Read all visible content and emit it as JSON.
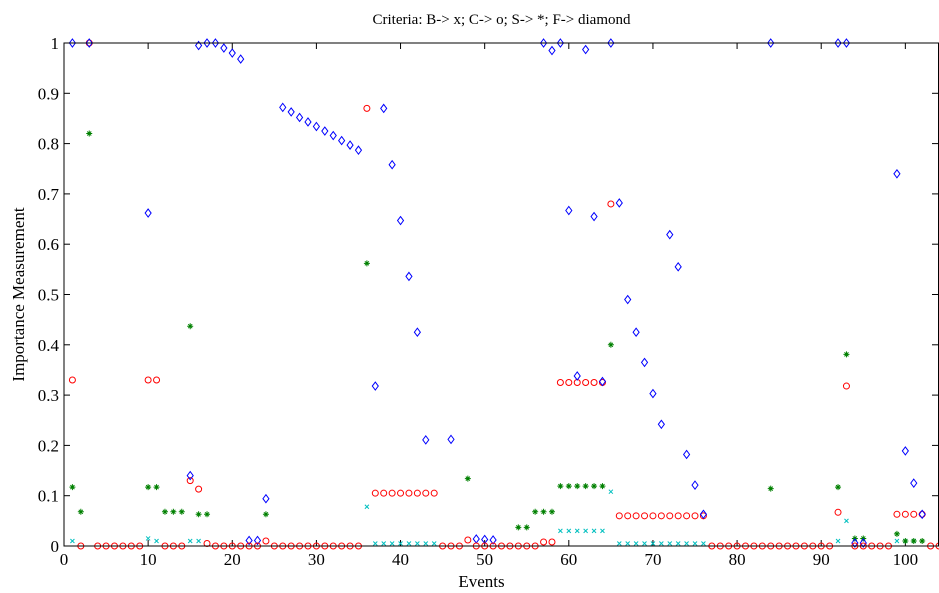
{
  "chart_data": {
    "type": "scatter",
    "title": "Criteria: B-> x; C-> o; S-> *; F-> diamond",
    "xlabel": "Events",
    "ylabel": "Importance Measurement",
    "xlim": [
      0,
      104
    ],
    "ylim": [
      0,
      1
    ],
    "grid": false,
    "legend": "none",
    "xticks": [
      0,
      10,
      20,
      30,
      40,
      50,
      60,
      70,
      80,
      90,
      100
    ],
    "xtick_labels": [
      "0",
      "10",
      "20",
      "30",
      "40",
      "50",
      "60",
      "70",
      "80",
      "90",
      "100"
    ],
    "yticks": [
      0,
      0.1,
      0.2,
      0.3,
      0.4,
      0.5,
      0.6,
      0.7,
      0.8,
      0.9,
      1
    ],
    "ytick_labels": [
      "0",
      "0.1",
      "0.2",
      "0.3",
      "0.4",
      "0.5",
      "0.6",
      "0.7",
      "0.8",
      "0.9",
      "1"
    ],
    "series": [
      {
        "marker": "x",
        "color": "#00bfbf",
        "x": [
          1,
          10,
          11,
          15,
          16,
          36,
          37,
          38,
          39,
          40,
          41,
          42,
          43,
          44,
          59,
          60,
          61,
          62,
          63,
          64,
          65,
          66,
          67,
          68,
          69,
          70,
          71,
          72,
          73,
          74,
          75,
          76,
          92,
          93,
          99,
          100,
          101
        ],
        "y": [
          0.01,
          0.015,
          0.01,
          0.01,
          0.01,
          0.078,
          0.005,
          0.005,
          0.005,
          0.005,
          0.005,
          0.005,
          0.005,
          0.005,
          0.03,
          0.03,
          0.03,
          0.03,
          0.03,
          0.03,
          0.108,
          0.005,
          0.005,
          0.005,
          0.005,
          0.005,
          0.005,
          0.005,
          0.005,
          0.005,
          0.005,
          0.005,
          0.01,
          0.05,
          0.01,
          0.01,
          0.01
        ]
      },
      {
        "marker": "o",
        "color": "#ff0000",
        "x": [
          1,
          3,
          10,
          11,
          15,
          16,
          17,
          24,
          36,
          37,
          38,
          39,
          40,
          41,
          42,
          43,
          44,
          48,
          57,
          58,
          59,
          60,
          61,
          62,
          63,
          64,
          65,
          66,
          67,
          68,
          69,
          70,
          71,
          72,
          73,
          74,
          75,
          76,
          92,
          93,
          99,
          100,
          101,
          102
        ],
        "y": [
          0.33,
          1,
          0.33,
          0.33,
          0.13,
          0.113,
          0.005,
          0.01,
          0.87,
          0.105,
          0.105,
          0.105,
          0.105,
          0.105,
          0.105,
          0.105,
          0.105,
          0.012,
          0.008,
          0.008,
          0.325,
          0.325,
          0.325,
          0.325,
          0.325,
          0.325,
          0.68,
          0.06,
          0.06,
          0.06,
          0.06,
          0.06,
          0.06,
          0.06,
          0.06,
          0.06,
          0.06,
          0.06,
          0.067,
          0.318,
          0.063,
          0.063,
          0.063,
          0.063
        ]
      },
      {
        "marker": "*",
        "color": "#008000",
        "x": [
          1,
          2,
          3,
          10,
          11,
          12,
          13,
          14,
          15,
          16,
          17,
          24,
          36,
          48,
          54,
          55,
          56,
          57,
          58,
          59,
          60,
          61,
          62,
          63,
          64,
          65,
          84,
          92,
          93,
          94,
          95,
          99,
          100,
          101,
          102
        ],
        "y": [
          0.117,
          0.068,
          0.82,
          0.117,
          0.117,
          0.068,
          0.068,
          0.068,
          0.437,
          0.063,
          0.063,
          0.063,
          0.562,
          0.134,
          0.037,
          0.037,
          0.068,
          0.068,
          0.068,
          0.119,
          0.119,
          0.119,
          0.119,
          0.119,
          0.119,
          0.4,
          0.114,
          0.117,
          0.381,
          0.015,
          0.015,
          0.024,
          0.01,
          0.01,
          0.01
        ]
      },
      {
        "marker": "diamond",
        "color": "#0000ff",
        "x": [
          1,
          3,
          10,
          15,
          16,
          17,
          18,
          19,
          20,
          21,
          22,
          23,
          24,
          26,
          27,
          28,
          29,
          30,
          31,
          32,
          33,
          34,
          35,
          37,
          38,
          39,
          40,
          41,
          42,
          43,
          46,
          49,
          50,
          51,
          57,
          58,
          59,
          60,
          61,
          62,
          63,
          64,
          65,
          66,
          67,
          68,
          69,
          70,
          71,
          72,
          73,
          74,
          75,
          76,
          84,
          92,
          93,
          94,
          95,
          99,
          100,
          101,
          102
        ],
        "y": [
          1,
          1,
          0.662,
          0.14,
          0.995,
          1,
          1,
          0.99,
          0.98,
          0.968,
          0.011,
          0.011,
          0.094,
          0.872,
          0.863,
          0.852,
          0.843,
          0.834,
          0.825,
          0.816,
          0.806,
          0.797,
          0.787,
          0.318,
          0.87,
          0.758,
          0.647,
          0.536,
          0.425,
          0.211,
          0.212,
          0.014,
          0.013,
          0.012,
          1,
          0.985,
          1,
          0.667,
          0.338,
          0.987,
          0.655,
          0.327,
          1,
          0.682,
          0.49,
          0.425,
          0.365,
          0.303,
          0.242,
          0.619,
          0.555,
          0.182,
          0.121,
          0.063,
          1,
          1,
          1,
          0.006,
          0.006,
          0.74,
          0.189,
          0.125,
          0.063
        ]
      },
      {
        "marker": "o",
        "color": "#ff0000",
        "x": [
          2,
          4,
          5,
          6,
          7,
          8,
          9,
          12,
          13,
          14,
          18,
          19,
          20,
          21,
          22,
          23,
          25,
          26,
          27,
          28,
          29,
          30,
          31,
          32,
          33,
          34,
          35,
          45,
          46,
          47,
          49,
          50,
          51,
          52,
          53,
          54,
          55,
          56,
          77,
          78,
          79,
          80,
          81,
          82,
          83,
          84,
          85,
          86,
          87,
          88,
          89,
          90,
          91,
          94,
          95,
          96,
          97,
          98,
          103,
          104
        ],
        "y": [
          0,
          0,
          0,
          0,
          0,
          0,
          0,
          0,
          0,
          0,
          0,
          0,
          0,
          0,
          0,
          0,
          0,
          0,
          0,
          0,
          0,
          0,
          0,
          0,
          0,
          0,
          0,
          0,
          0,
          0,
          0,
          0,
          0,
          0,
          0,
          0,
          0,
          0,
          0,
          0,
          0,
          0,
          0,
          0,
          0,
          0,
          0,
          0,
          0,
          0,
          0,
          0,
          0,
          0,
          0,
          0,
          0,
          0,
          0,
          0
        ]
      }
    ]
  }
}
